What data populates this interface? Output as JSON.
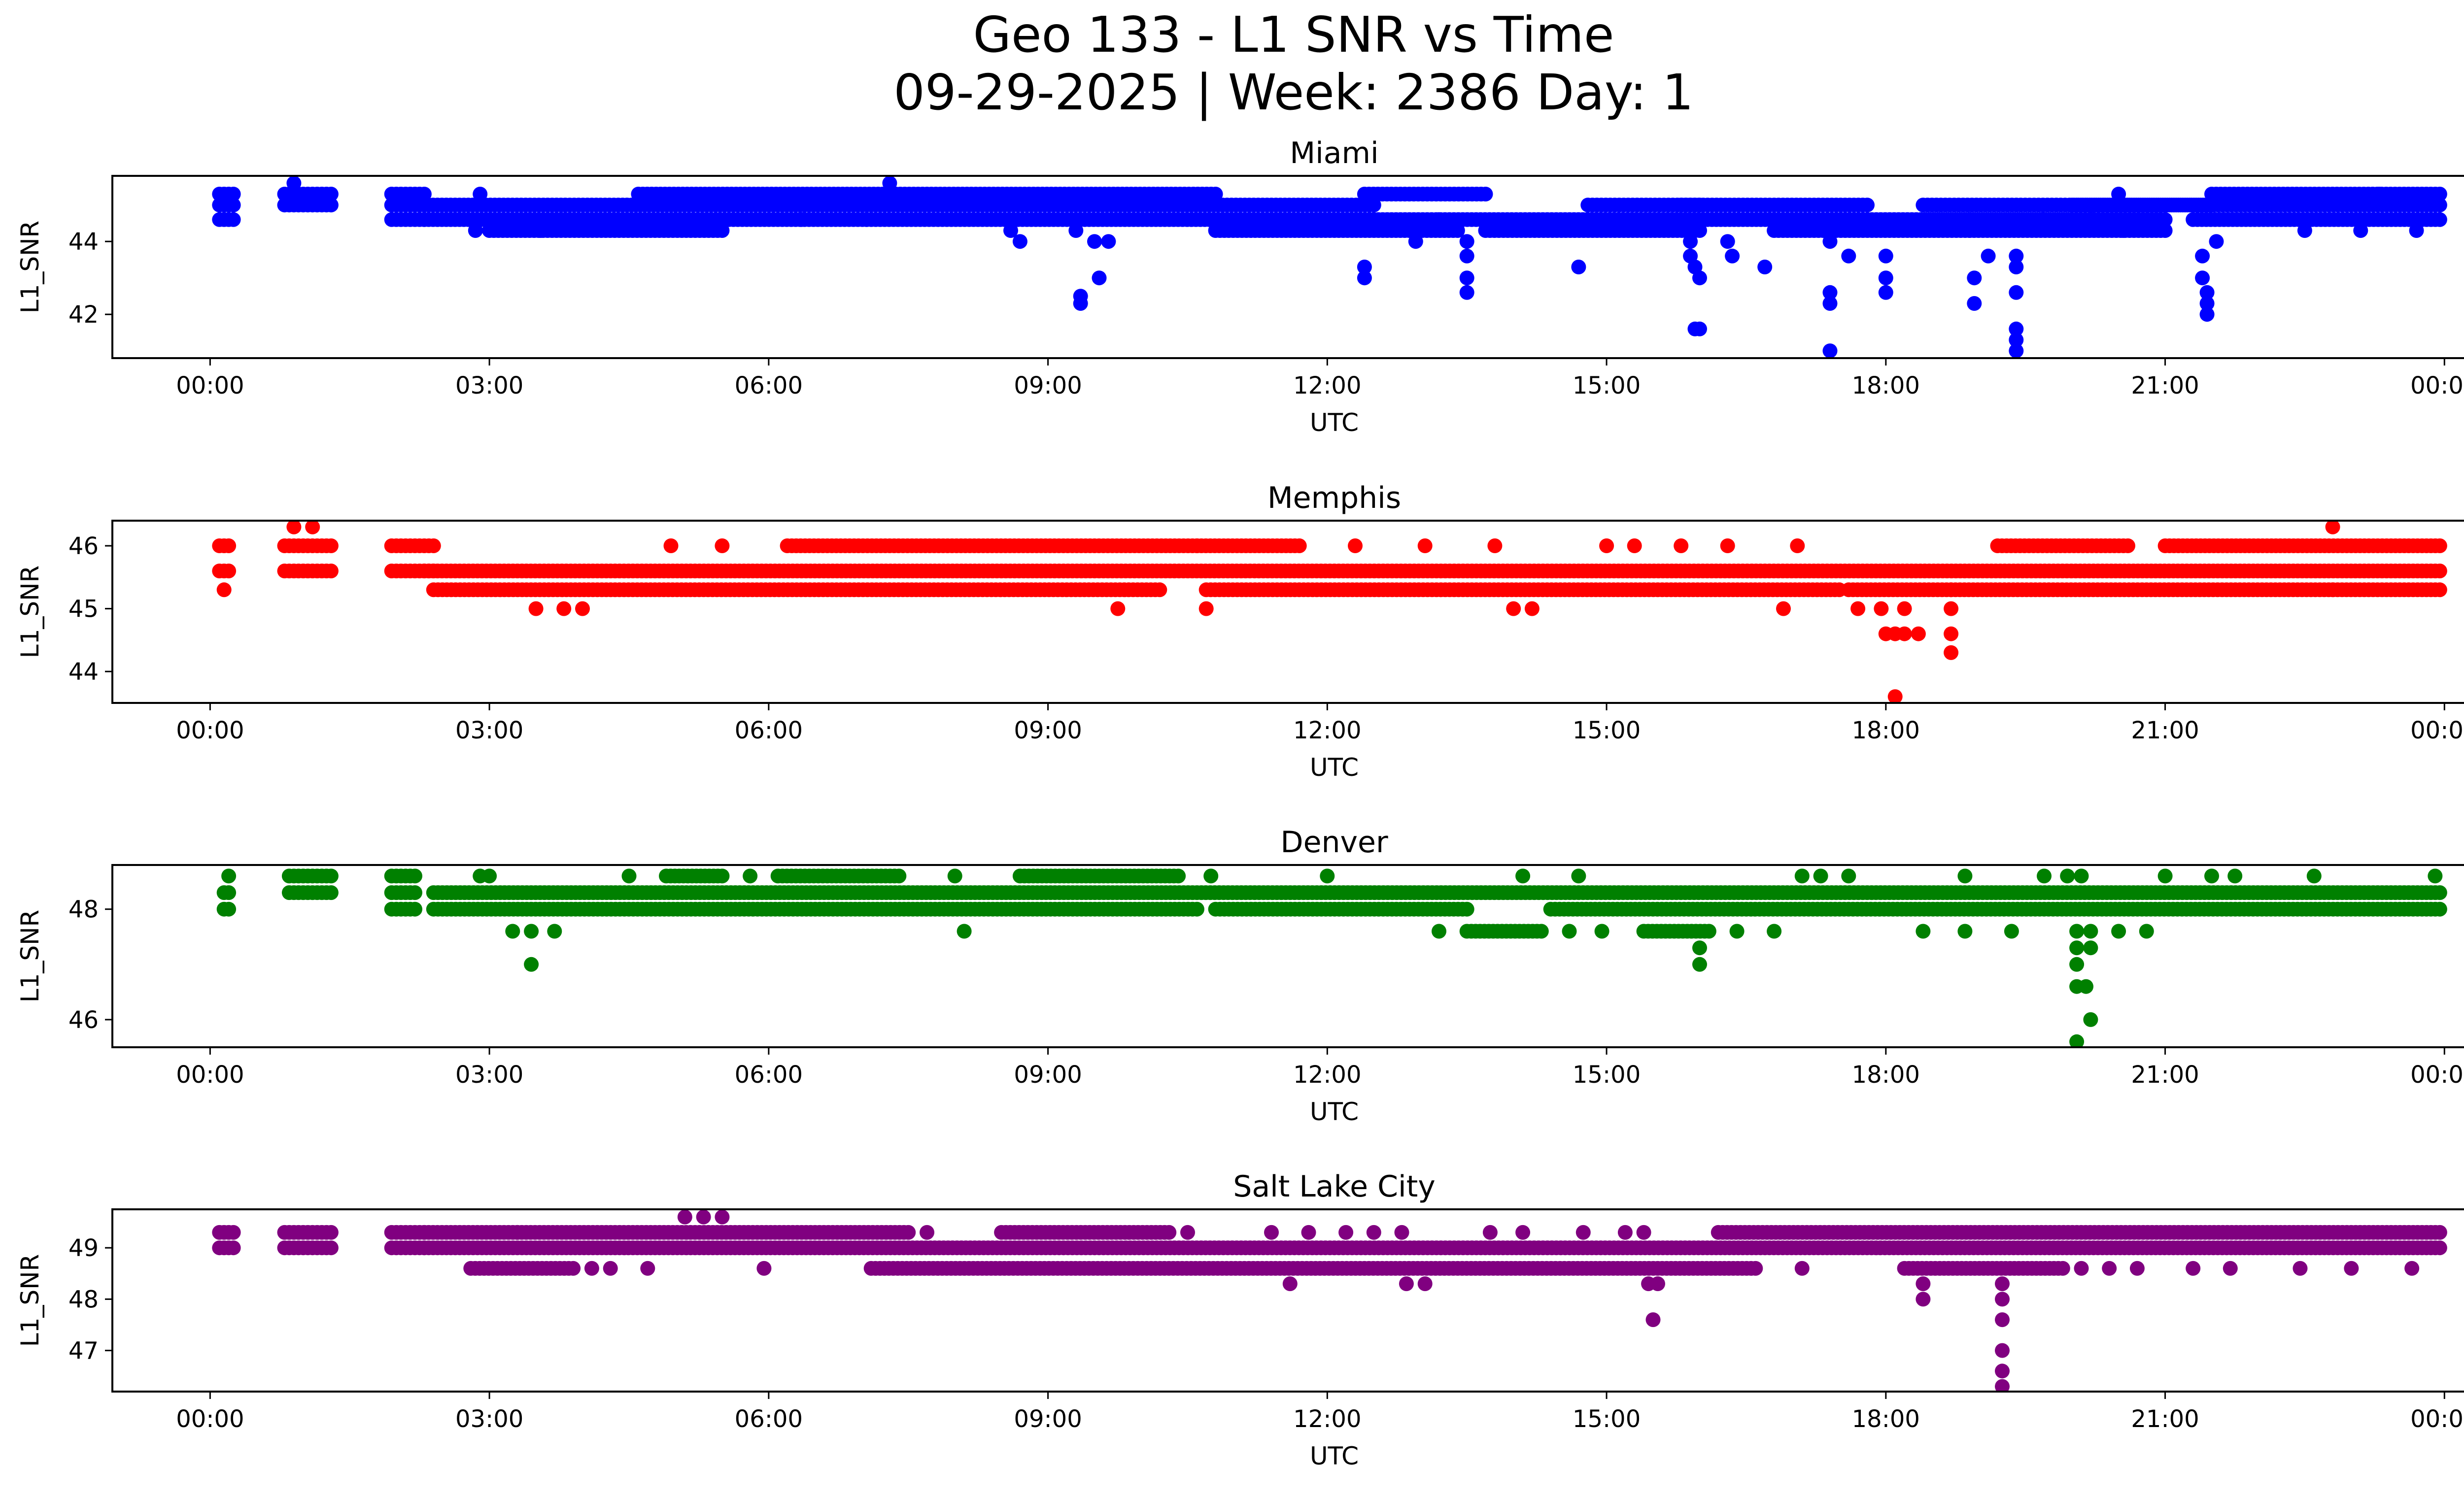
{
  "title_line1": "Geo 133 - L1 SNR vs Time",
  "title_line2": "09-29-2025 | Week: 2386 Day: 1",
  "chart_data": [
    {
      "type": "scatter",
      "title": "Miami",
      "xlabel": "UTC",
      "ylabel": "L1_SNR",
      "color": "#0000ff",
      "xlim_hours": [
        -1.05,
        25.2
      ],
      "ylim": [
        40.8,
        45.8
      ],
      "yticks": [
        42,
        44
      ],
      "xtick_labels": [
        "00:00",
        "03:00",
        "06:00",
        "09:00",
        "12:00",
        "15:00",
        "18:00",
        "21:00",
        "00:00"
      ],
      "band_levels": [
        45.3,
        45.0,
        44.6,
        44.3
      ],
      "bands": [
        {
          "start": 0.1,
          "end": 0.25,
          "levels": [
            45.3,
            45.0,
            44.6
          ]
        },
        {
          "start": 0.8,
          "end": 1.3,
          "levels": [
            45.3,
            45.0
          ]
        },
        {
          "start": 1.95,
          "end": 2.3,
          "levels": [
            45.3,
            45.0,
            44.6
          ]
        },
        {
          "start": 2.3,
          "end": 5.0,
          "levels": [
            45.0,
            44.6
          ]
        },
        {
          "start": 3.0,
          "end": 5.5,
          "levels": [
            44.3
          ]
        },
        {
          "start": 4.6,
          "end": 10.8,
          "levels": [
            45.3
          ]
        },
        {
          "start": 5.0,
          "end": 12.5,
          "levels": [
            45.0,
            44.6
          ]
        },
        {
          "start": 10.8,
          "end": 13.4,
          "levels": [
            44.3
          ]
        },
        {
          "start": 12.4,
          "end": 13.7,
          "levels": [
            45.3
          ]
        },
        {
          "start": 12.5,
          "end": 16.8,
          "levels": [
            44.6
          ]
        },
        {
          "start": 13.7,
          "end": 16.0,
          "levels": [
            44.3
          ]
        },
        {
          "start": 14.8,
          "end": 16.0,
          "levels": [
            45.0
          ]
        },
        {
          "start": 15.8,
          "end": 17.8,
          "levels": [
            45.0
          ]
        },
        {
          "start": 16.8,
          "end": 18.9,
          "levels": [
            44.6,
            44.3
          ]
        },
        {
          "start": 18.4,
          "end": 21.5,
          "levels": [
            45.0
          ]
        },
        {
          "start": 18.9,
          "end": 21.0,
          "levels": [
            44.6,
            44.3
          ]
        },
        {
          "start": 20.0,
          "end": 23.95,
          "levels": [
            45.0
          ]
        },
        {
          "start": 21.3,
          "end": 23.95,
          "levels": [
            44.6
          ]
        },
        {
          "start": 21.5,
          "end": 23.95,
          "levels": [
            45.3
          ]
        }
      ],
      "points": [
        [
          0.9,
          45.6
        ],
        [
          7.3,
          45.6
        ],
        [
          2.9,
          45.3
        ],
        [
          2.85,
          44.3
        ],
        [
          3.55,
          44.3
        ],
        [
          6.35,
          44.6
        ],
        [
          7.05,
          44.6
        ],
        [
          8.6,
          44.3
        ],
        [
          8.7,
          44.0
        ],
        [
          9.35,
          42.5
        ],
        [
          9.35,
          42.3
        ],
        [
          9.5,
          44.0
        ],
        [
          9.55,
          43.0
        ],
        [
          9.65,
          44.0
        ],
        [
          9.3,
          44.3
        ],
        [
          12.4,
          43.3
        ],
        [
          12.4,
          43.0
        ],
        [
          12.95,
          44.3
        ],
        [
          12.95,
          44.0
        ],
        [
          13.2,
          44.6
        ],
        [
          13.5,
          44.0
        ],
        [
          13.5,
          43.6
        ],
        [
          13.5,
          43.0
        ],
        [
          13.5,
          42.6
        ],
        [
          14.7,
          43.3
        ],
        [
          15.9,
          44.0
        ],
        [
          15.9,
          43.6
        ],
        [
          15.95,
          43.3
        ],
        [
          16.0,
          43.0
        ],
        [
          16.0,
          41.6
        ],
        [
          15.95,
          41.6
        ],
        [
          16.7,
          43.3
        ],
        [
          16.3,
          44.0
        ],
        [
          16.35,
          43.6
        ],
        [
          17.4,
          44.0
        ],
        [
          17.4,
          42.6
        ],
        [
          17.4,
          42.3
        ],
        [
          17.4,
          41.0
        ],
        [
          17.6,
          43.6
        ],
        [
          18.0,
          43.6
        ],
        [
          18.0,
          43.0
        ],
        [
          18.0,
          42.6
        ],
        [
          18.95,
          43.0
        ],
        [
          18.95,
          42.3
        ],
        [
          19.1,
          43.6
        ],
        [
          19.4,
          43.6
        ],
        [
          19.4,
          43.3
        ],
        [
          19.4,
          42.6
        ],
        [
          19.4,
          41.6
        ],
        [
          19.4,
          41.3
        ],
        [
          19.4,
          41.0
        ],
        [
          19.7,
          44.6
        ],
        [
          20.2,
          44.6
        ],
        [
          20.5,
          45.3
        ],
        [
          20.55,
          44.3
        ],
        [
          21.4,
          43.6
        ],
        [
          21.4,
          43.0
        ],
        [
          21.45,
          42.6
        ],
        [
          21.45,
          42.3
        ],
        [
          21.45,
          42.0
        ],
        [
          21.55,
          44.0
        ],
        [
          22.5,
          44.3
        ],
        [
          23.1,
          44.3
        ],
        [
          23.3,
          45.3
        ],
        [
          23.7,
          44.3
        ]
      ]
    },
    {
      "type": "scatter",
      "title": "Memphis",
      "xlabel": "UTC",
      "ylabel": "L1_SNR",
      "color": "#ff0000",
      "xlim_hours": [
        -1.05,
        25.2
      ],
      "ylim": [
        43.5,
        46.4
      ],
      "yticks": [
        44,
        45,
        46
      ],
      "xtick_labels": [
        "00:00",
        "03:00",
        "06:00",
        "09:00",
        "12:00",
        "15:00",
        "18:00",
        "21:00",
        "00:00"
      ],
      "band_levels": [
        46.0,
        45.6,
        45.3
      ],
      "bands": [
        {
          "start": 0.1,
          "end": 0.2,
          "levels": [
            46.0,
            45.6
          ]
        },
        {
          "start": 0.8,
          "end": 1.3,
          "levels": [
            46.0,
            45.6
          ]
        },
        {
          "start": 1.95,
          "end": 2.4,
          "levels": [
            46.0,
            45.6
          ]
        },
        {
          "start": 2.3,
          "end": 23.95,
          "levels": [
            45.6
          ]
        },
        {
          "start": 2.4,
          "end": 10.2,
          "levels": [
            45.3
          ]
        },
        {
          "start": 6.2,
          "end": 10.6,
          "levels": [
            46.0
          ]
        },
        {
          "start": 10.6,
          "end": 11.7,
          "levels": [
            46.0
          ]
        },
        {
          "start": 10.7,
          "end": 17.5,
          "levels": [
            45.3
          ]
        },
        {
          "start": 17.6,
          "end": 18.7,
          "levels": [
            45.3
          ]
        },
        {
          "start": 18.7,
          "end": 23.95,
          "levels": [
            45.3
          ]
        },
        {
          "start": 19.2,
          "end": 20.6,
          "levels": [
            46.0
          ]
        },
        {
          "start": 21.0,
          "end": 23.95,
          "levels": [
            46.0
          ]
        }
      ],
      "points": [
        [
          0.15,
          45.3
        ],
        [
          0.9,
          46.3
        ],
        [
          1.1,
          46.3
        ],
        [
          4.95,
          46.0
        ],
        [
          5.5,
          46.0
        ],
        [
          3.5,
          45.0
        ],
        [
          3.8,
          45.0
        ],
        [
          4.0,
          45.0
        ],
        [
          9.75,
          45.0
        ],
        [
          10.7,
          45.0
        ],
        [
          12.3,
          46.0
        ],
        [
          13.05,
          46.0
        ],
        [
          13.8,
          46.0
        ],
        [
          14.0,
          45.0
        ],
        [
          14.2,
          45.0
        ],
        [
          15.0,
          46.0
        ],
        [
          15.3,
          46.0
        ],
        [
          15.8,
          46.0
        ],
        [
          16.3,
          46.0
        ],
        [
          16.9,
          45.0
        ],
        [
          17.05,
          46.0
        ],
        [
          17.7,
          45.0
        ],
        [
          17.95,
          45.0
        ],
        [
          18.0,
          44.6
        ],
        [
          18.1,
          44.6
        ],
        [
          18.2,
          45.0
        ],
        [
          18.2,
          44.6
        ],
        [
          18.35,
          44.6
        ],
        [
          18.1,
          43.6
        ],
        [
          18.7,
          45.0
        ],
        [
          18.7,
          44.6
        ],
        [
          18.7,
          44.3
        ],
        [
          22.8,
          46.3
        ],
        [
          22.8,
          45.3
        ]
      ]
    },
    {
      "type": "scatter",
      "title": "Denver",
      "xlabel": "UTC",
      "ylabel": "L1_SNR",
      "color": "#008000",
      "xlim_hours": [
        -1.05,
        25.2
      ],
      "ylim": [
        45.5,
        48.8
      ],
      "yticks": [
        46,
        48
      ],
      "xtick_labels": [
        "00:00",
        "03:00",
        "06:00",
        "09:00",
        "12:00",
        "15:00",
        "18:00",
        "21:00",
        "00:00"
      ],
      "band_levels": [
        48.6,
        48.3,
        48.0
      ],
      "bands": [
        {
          "start": 0.15,
          "end": 0.2,
          "levels": [
            48.3,
            48.0
          ]
        },
        {
          "start": 0.85,
          "end": 1.3,
          "levels": [
            48.6,
            48.3
          ]
        },
        {
          "start": 1.95,
          "end": 2.2,
          "levels": [
            48.6,
            48.3,
            48.0
          ]
        },
        {
          "start": 2.4,
          "end": 23.95,
          "levels": [
            48.3
          ]
        },
        {
          "start": 2.4,
          "end": 10.6,
          "levels": [
            48.0
          ]
        },
        {
          "start": 4.9,
          "end": 5.5,
          "levels": [
            48.6
          ]
        },
        {
          "start": 6.1,
          "end": 7.4,
          "levels": [
            48.6
          ]
        },
        {
          "start": 8.7,
          "end": 10.4,
          "levels": [
            48.6
          ]
        },
        {
          "start": 10.8,
          "end": 13.5,
          "levels": [
            48.0
          ]
        },
        {
          "start": 13.5,
          "end": 14.3,
          "levels": [
            47.6
          ]
        },
        {
          "start": 14.4,
          "end": 23.95,
          "levels": [
            48.0
          ]
        },
        {
          "start": 15.4,
          "end": 16.1,
          "levels": [
            47.6
          ]
        }
      ],
      "points": [
        [
          0.2,
          48.6
        ],
        [
          3.0,
          48.6
        ],
        [
          2.9,
          48.6
        ],
        [
          3.25,
          47.6
        ],
        [
          3.45,
          47.6
        ],
        [
          3.45,
          47.0
        ],
        [
          3.7,
          47.6
        ],
        [
          4.5,
          48.6
        ],
        [
          5.8,
          48.6
        ],
        [
          8.1,
          47.6
        ],
        [
          8.0,
          48.6
        ],
        [
          10.75,
          48.6
        ],
        [
          12.0,
          48.6
        ],
        [
          13.2,
          47.6
        ],
        [
          14.1,
          48.6
        ],
        [
          14.7,
          48.6
        ],
        [
          14.6,
          47.6
        ],
        [
          14.95,
          47.6
        ],
        [
          16.0,
          47.3
        ],
        [
          16.0,
          47.0
        ],
        [
          16.4,
          47.6
        ],
        [
          16.8,
          47.6
        ],
        [
          17.1,
          48.6
        ],
        [
          17.3,
          48.6
        ],
        [
          17.6,
          48.6
        ],
        [
          18.4,
          47.6
        ],
        [
          18.85,
          48.6
        ],
        [
          18.85,
          47.6
        ],
        [
          19.35,
          47.6
        ],
        [
          19.7,
          48.6
        ],
        [
          19.95,
          48.6
        ],
        [
          20.1,
          48.6
        ],
        [
          20.05,
          47.6
        ],
        [
          20.05,
          47.3
        ],
        [
          20.05,
          47.0
        ],
        [
          20.05,
          46.6
        ],
        [
          20.15,
          46.6
        ],
        [
          20.2,
          46.0
        ],
        [
          20.05,
          45.6
        ],
        [
          20.2,
          47.6
        ],
        [
          20.2,
          47.3
        ],
        [
          20.5,
          47.6
        ],
        [
          20.8,
          47.6
        ],
        [
          21.0,
          48.6
        ],
        [
          21.5,
          48.6
        ],
        [
          21.75,
          48.6
        ],
        [
          22.6,
          48.6
        ],
        [
          23.9,
          48.6
        ]
      ]
    },
    {
      "type": "scatter",
      "title": "Salt Lake City",
      "xlabel": "UTC",
      "ylabel": "L1_SNR",
      "color": "#800080",
      "xlim_hours": [
        -1.05,
        25.2
      ],
      "ylim": [
        46.2,
        49.75
      ],
      "yticks": [
        47,
        48,
        49
      ],
      "xtick_labels": [
        "00:00",
        "03:00",
        "06:00",
        "09:00",
        "12:00",
        "15:00",
        "18:00",
        "21:00",
        "00:00"
      ],
      "band_levels": [
        49.3,
        49.0,
        48.6
      ],
      "bands": [
        {
          "start": 0.1,
          "end": 0.25,
          "levels": [
            49.3,
            49.0
          ]
        },
        {
          "start": 0.8,
          "end": 1.3,
          "levels": [
            49.3,
            49.0
          ]
        },
        {
          "start": 1.95,
          "end": 2.3,
          "levels": [
            49.3,
            49.0
          ]
        },
        {
          "start": 2.3,
          "end": 3.3,
          "levels": [
            49.3
          ]
        },
        {
          "start": 2.3,
          "end": 23.95,
          "levels": [
            49.0
          ]
        },
        {
          "start": 2.8,
          "end": 3.9,
          "levels": [
            48.6
          ]
        },
        {
          "start": 3.3,
          "end": 7.5,
          "levels": [
            49.3
          ]
        },
        {
          "start": 7.1,
          "end": 16.6,
          "levels": [
            48.6
          ]
        },
        {
          "start": 8.5,
          "end": 10.3,
          "levels": [
            49.3
          ]
        },
        {
          "start": 16.2,
          "end": 23.95,
          "levels": [
            49.3
          ]
        },
        {
          "start": 18.2,
          "end": 19.9,
          "levels": [
            48.6
          ]
        }
      ],
      "points": [
        [
          5.1,
          49.6
        ],
        [
          5.5,
          49.6
        ],
        [
          5.3,
          49.6
        ],
        [
          4.1,
          48.6
        ],
        [
          4.3,
          48.6
        ],
        [
          4.7,
          48.6
        ],
        [
          5.95,
          48.6
        ],
        [
          7.7,
          49.3
        ],
        [
          10.5,
          49.3
        ],
        [
          11.4,
          49.3
        ],
        [
          11.6,
          48.3
        ],
        [
          11.8,
          49.3
        ],
        [
          12.2,
          49.3
        ],
        [
          12.5,
          49.3
        ],
        [
          12.8,
          49.3
        ],
        [
          12.85,
          48.3
        ],
        [
          13.05,
          48.3
        ],
        [
          13.75,
          49.3
        ],
        [
          14.1,
          49.3
        ],
        [
          14.75,
          49.3
        ],
        [
          15.2,
          49.3
        ],
        [
          15.45,
          48.3
        ],
        [
          15.55,
          48.3
        ],
        [
          15.5,
          47.6
        ],
        [
          15.4,
          49.3
        ],
        [
          17.1,
          48.6
        ],
        [
          18.4,
          48.3
        ],
        [
          18.4,
          48.0
        ],
        [
          19.25,
          48.3
        ],
        [
          19.25,
          48.0
        ],
        [
          19.25,
          47.6
        ],
        [
          19.25,
          47.0
        ],
        [
          19.25,
          46.6
        ],
        [
          19.25,
          46.3
        ],
        [
          20.1,
          48.6
        ],
        [
          20.4,
          48.6
        ],
        [
          20.7,
          48.6
        ],
        [
          21.3,
          48.6
        ],
        [
          21.7,
          48.6
        ],
        [
          22.45,
          48.6
        ],
        [
          23.0,
          48.6
        ],
        [
          23.65,
          48.6
        ]
      ]
    }
  ]
}
